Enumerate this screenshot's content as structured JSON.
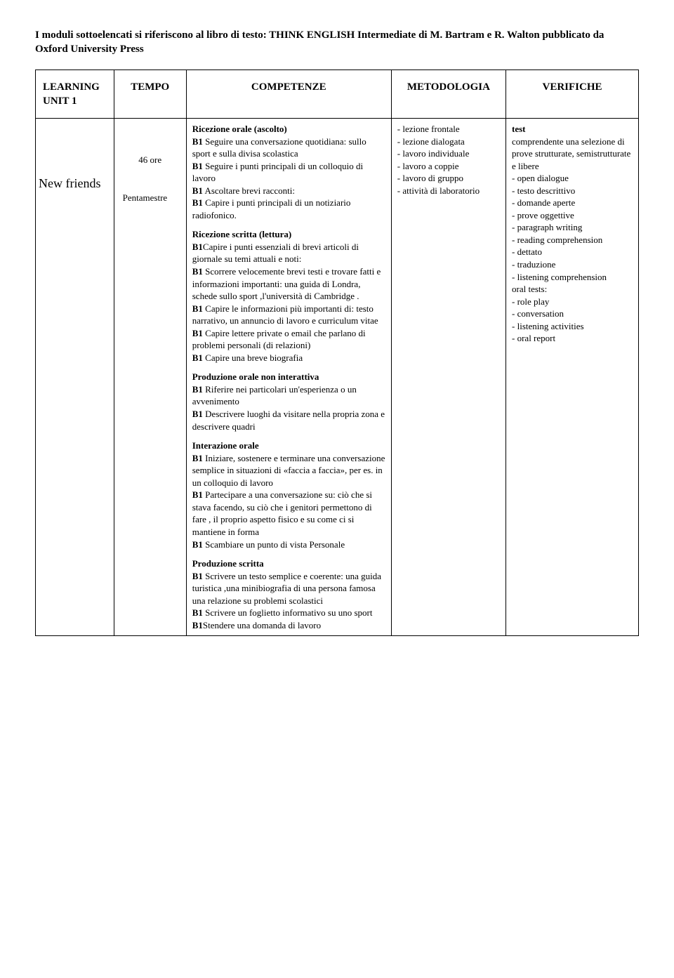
{
  "intro": "I moduli sottoelencati si riferiscono al libro di testo: THINK ENGLISH  Intermediate  di M.  Bartram e R. Walton pubblicato da Oxford University Press",
  "headers": {
    "unit": "LEARNING UNIT 1",
    "tempo": "TEMPO",
    "competenze": "COMPETENZE",
    "metodologia": "METODOLOGIA",
    "verifiche": "VERIFICHE"
  },
  "row": {
    "unit_title": "New friends",
    "tempo_hours": "46 ore",
    "tempo_period": "Pentamestre"
  },
  "competenze": {
    "s1_head": "Ricezione orale (ascolto)",
    "s1_l1a": "B1",
    "s1_l1b": " Seguire una conversazione quotidiana: sullo sport e sulla  divisa scolastica",
    "s1_l2a": "B1",
    "s1_l2b": " Seguire i punti principali di un  colloquio di lavoro",
    "s1_l3a": "B1",
    "s1_l3b": " Ascoltare brevi racconti:",
    "s1_l4a": "B1",
    "s1_l4b": " Capire i punti principali di un notiziario radiofonico.",
    "s2_head": "Ricezione scritta (lettura)",
    "s2_l1a": "B1",
    "s2_l1b": "Capire i punti essenziali di  brevi articoli di giornale su temi attuali e noti:",
    "s2_l2a": "B1",
    "s2_l2b": " Scorrere velocemente brevi testi e trovare fatti e informazioni  importanti: una guida di Londra,   schede sullo sport ,l'università di  Cambridge .",
    "s2_l3a": "B1",
    "s2_l3b": " Capire le informazioni più  importanti di: testo narrativo,  un annuncio di lavoro e curriculum  vitae",
    "s2_l4a": "B1",
    "s2_l4b": " Capire lettere private o email  che parlano di problemi personali (di relazioni)",
    "s2_l5a": "B1",
    "s2_l5b": " Capire una breve biografia",
    "s3_head": "Produzione orale non interattiva",
    "s3_l1a": "B1",
    "s3_l1b": " Riferire nei particolari un'esperienza o un avvenimento",
    "s3_l2a": "B1",
    "s3_l2b": " Descrivere luoghi da visitare nella propria zona e descrivere quadri",
    "s4_head": "Interazione orale",
    "s4_l1a": "B1",
    "s4_l1b": " Iniziare, sostenere e terminare  una conversazione semplice in  situazioni di «faccia a faccia», per  es. in un colloquio di lavoro",
    "s4_l2a": "B1",
    "s4_l2b": " Partecipare a una conversazione su: ciò che si stava facendo, su ciò che  i genitori  permettono di fare , il proprio aspetto fisico e su come ci si mantiene in forma",
    "s4_l3a": "B1",
    "s4_l3b": " Scambiare un punto di vista Personale",
    "s5_head": "Produzione scritta",
    "s5_l1a": "B1",
    "s5_l1b": " Scrivere un testo semplice e coerente: una guida turistica ,una minibiografia di una persona famosa  una relazione su problemi scolastici",
    "s5_l2a": "B1",
    "s5_l2b": " Scrivere un foglietto informativo  su uno sport",
    "s5_l3a": "B1",
    "s5_l3b": "Stendere una domanda di lavoro"
  },
  "metodologia": {
    "items": [
      "lezione frontale",
      "lezione dialogata",
      "lavoro individuale",
      "lavoro a coppie",
      "lavoro di gruppo",
      "attività di laboratorio"
    ]
  },
  "verifiche": {
    "lead1": "test",
    "lead2": "comprendente una selezione di prove strutturate, semistrutturate e libere",
    "items1": [
      "open dialogue",
      "testo descrittivo",
      "domande aperte",
      "prove oggettive",
      "paragraph writing",
      "reading comprehension",
      "dettato",
      "traduzione",
      "listening comprehension"
    ],
    "oral_head": "oral tests:",
    "oral_first": "-   role play",
    "items2": [
      "conversation",
      "listening activities",
      "oral report"
    ]
  }
}
